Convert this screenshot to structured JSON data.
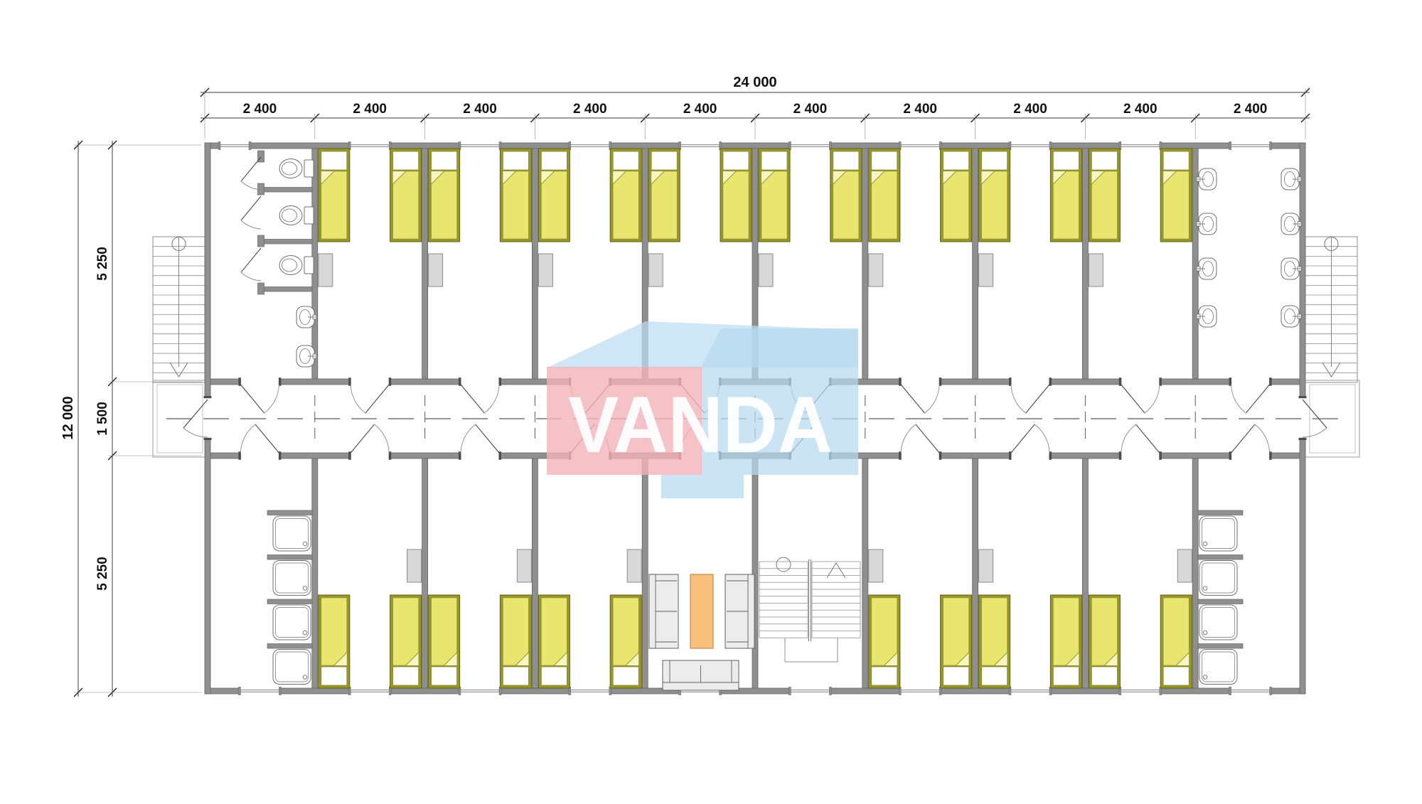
{
  "dimensions": {
    "overall_width": "24 000",
    "overall_height": "12 000",
    "module_widths": [
      "2 400",
      "2 400",
      "2 400",
      "2 400",
      "2 400",
      "2 400",
      "2 400",
      "2 400",
      "2 400",
      "2 400"
    ],
    "vertical_segments": [
      "5 250",
      "1 500",
      "5 250"
    ]
  },
  "watermark": {
    "text": "VANDA"
  },
  "colors": {
    "wall": "#8f8f8f",
    "wall_edge": "#666666",
    "bed_frame": "#97972c",
    "bed_frame_edge": "#62620f",
    "bed_fill": "#e8e66e",
    "bed_fold": "#f8f6c0",
    "pillow": "#ffffff",
    "wardrobe": "#d8d8d8",
    "wardrobe_edge": "#8a8a8a",
    "sofa": "#ececec",
    "sofa_edge": "#5f5f5f",
    "table": "#f9c07b",
    "table_edge": "#c98a4a",
    "fixture_line": "#6f6f6f",
    "door_leaf": "#444444",
    "door_arc": "#8a8a8a",
    "stair_line": "#8c8c8c",
    "dash": "#5a5a5a",
    "watermark_pink": "#f2b3ba",
    "watermark_blue_top": "#bcdcf2",
    "watermark_blue_side": "#b7d9ee"
  },
  "floor_plan": {
    "top_band": [
      "wc",
      "bedroom",
      "bedroom",
      "bedroom",
      "bedroom",
      "bedroom",
      "bedroom",
      "bedroom",
      "bedroom",
      "washroom"
    ],
    "bottom_band": [
      "shower",
      "bedroom",
      "bedroom",
      "bedroom",
      "lounge",
      "staircase",
      "bedroom",
      "bedroom",
      "bedroom",
      "shower"
    ],
    "bottom_wardrobe_sides": {
      "1": "right",
      "2": "right",
      "3": "right",
      "6": "left",
      "7": "left",
      "8": "right"
    },
    "beds_total": 28,
    "wc_toilets": 3,
    "wc_urinals": 2,
    "washbasins": 8,
    "shower_trays": 8,
    "exterior_stairs": 2,
    "interior_staircases": 1
  }
}
